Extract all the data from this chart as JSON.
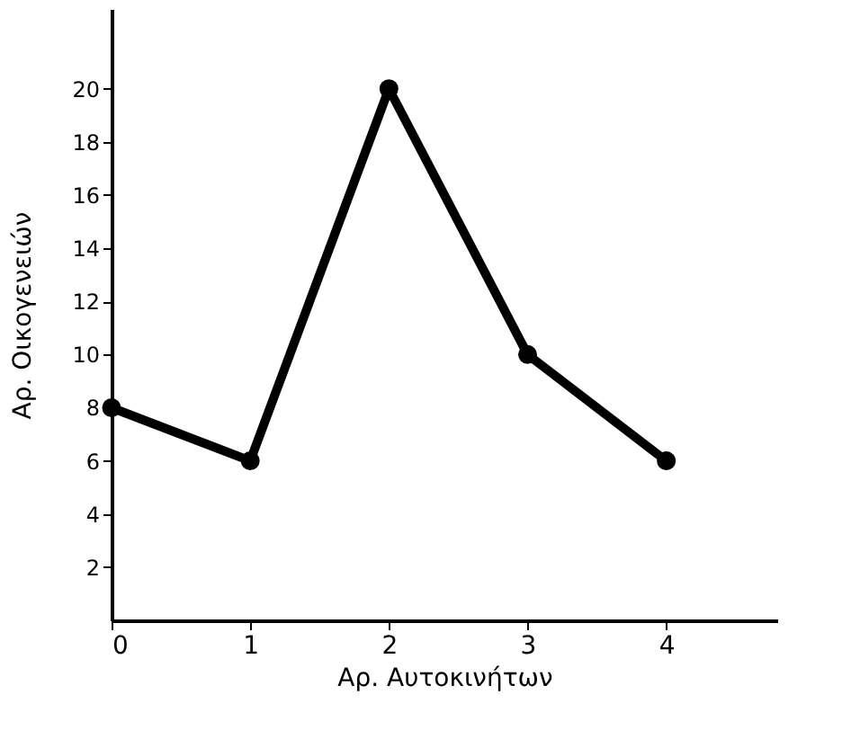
{
  "chart_data": {
    "type": "line",
    "xlabel": "Αρ. Αυτοκινήτων",
    "ylabel": "Αρ. Οικογενειών",
    "x": [
      0,
      1,
      2,
      3,
      4
    ],
    "series": [
      {
        "color": "#000000",
        "values": [
          8,
          6,
          20,
          10,
          6
        ]
      }
    ],
    "xlim": [
      0,
      4.8
    ],
    "xticks": [
      0,
      1,
      2,
      3,
      4
    ],
    "ylim": [
      0,
      23
    ],
    "yticks": [
      2,
      4,
      6,
      8,
      10,
      12,
      14,
      16,
      18,
      20
    ],
    "marker": "circle",
    "line_style": "solid",
    "grid": false,
    "legend": false
  }
}
